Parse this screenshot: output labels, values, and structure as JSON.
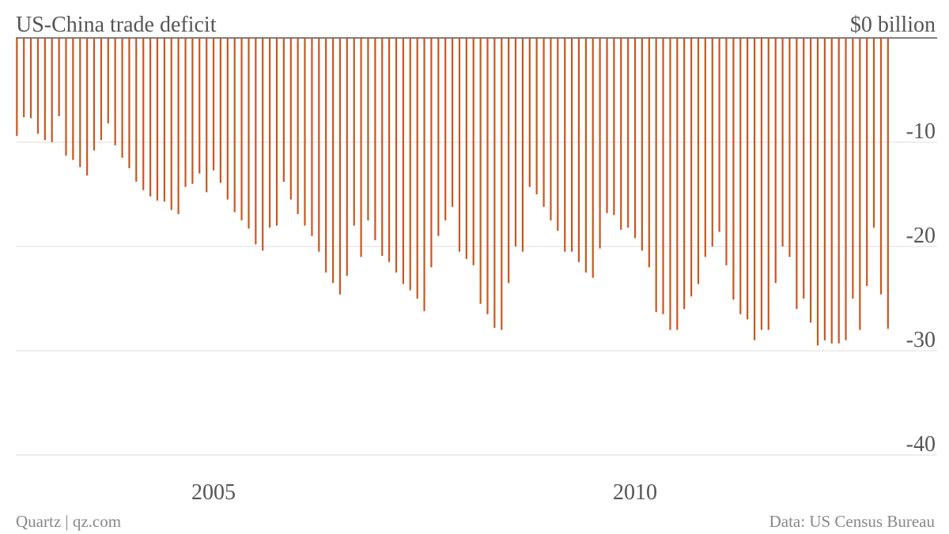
{
  "chart_data": {
    "type": "bar",
    "title": "US-China trade deficit",
    "source_left": "Quartz | qz.com",
    "source_right": "Data: US Census Bureau",
    "color": "#c9561f",
    "x": [
      2002.667,
      2002.75,
      2002.833,
      2002.917,
      2003,
      2003.083,
      2003.167,
      2003.25,
      2003.333,
      2003.417,
      2003.5,
      2003.583,
      2003.667,
      2003.75,
      2003.833,
      2003.917,
      2004,
      2004.083,
      2004.167,
      2004.25,
      2004.333,
      2004.417,
      2004.5,
      2004.583,
      2004.667,
      2004.75,
      2004.833,
      2004.917,
      2005,
      2005.083,
      2005.167,
      2005.25,
      2005.333,
      2005.417,
      2005.5,
      2005.583,
      2005.667,
      2005.75,
      2005.833,
      2005.917,
      2006,
      2006.083,
      2006.167,
      2006.25,
      2006.333,
      2006.417,
      2006.5,
      2006.583,
      2006.667,
      2006.75,
      2006.833,
      2006.917,
      2007,
      2007.083,
      2007.167,
      2007.25,
      2007.333,
      2007.417,
      2007.5,
      2007.583,
      2007.667,
      2007.75,
      2007.833,
      2007.917,
      2008,
      2008.083,
      2008.167,
      2008.25,
      2008.333,
      2008.417,
      2008.5,
      2008.583,
      2008.667,
      2008.75,
      2008.833,
      2008.917,
      2009,
      2009.083,
      2009.167,
      2009.25,
      2009.333,
      2009.417,
      2009.5,
      2009.583,
      2009.667,
      2009.75,
      2009.833,
      2009.917,
      2010,
      2010.083,
      2010.167,
      2010.25,
      2010.333,
      2010.417,
      2010.5,
      2010.583,
      2010.667,
      2010.75,
      2010.833,
      2010.917,
      2011,
      2011.083,
      2011.167,
      2011.25,
      2011.333,
      2011.417,
      2011.5,
      2011.583,
      2011.667,
      2011.75,
      2011.833,
      2011.917,
      2012,
      2012.083,
      2012.167,
      2012.25,
      2012.333,
      2012.417,
      2012.5,
      2012.583,
      2012.667,
      2012.75,
      2012.833,
      2012.917,
      2013
    ],
    "values": [
      -9.4,
      -7.6,
      -7.7,
      -9.2,
      -9.8,
      -10.0,
      -7.5,
      -11.3,
      -11.7,
      -12.4,
      -13.2,
      -10.8,
      -9.8,
      -8.2,
      -10.3,
      -11.5,
      -12.5,
      -13.8,
      -14.6,
      -15.2,
      -15.6,
      -15.7,
      -16.5,
      -16.9,
      -14.3,
      -14.0,
      -13.0,
      -14.8,
      -12.7,
      -13.9,
      -15.5,
      -16.7,
      -17.5,
      -18.3,
      -19.8,
      -20.4,
      -18.2,
      -18.0,
      -13.8,
      -15.5,
      -16.9,
      -18.0,
      -19.0,
      -20.5,
      -22.5,
      -23.5,
      -24.6,
      -22.8,
      -18.0,
      -21.0,
      -17.5,
      -19.4,
      -20.9,
      -21.5,
      -22.5,
      -23.6,
      -24.2,
      -25.0,
      -26.2,
      -22.0,
      -19.0,
      -17.5,
      -16.2,
      -20.5,
      -21.2,
      -21.8,
      -25.5,
      -26.5,
      -27.8,
      -28.0,
      -23.5,
      -20.0,
      -20.5,
      -14.3,
      -15.0,
      -16.2,
      -17.5,
      -18.5,
      -20.5,
      -20.5,
      -21.5,
      -22.5,
      -23.0,
      -20.2,
      -16.8,
      -17.0,
      -18.4,
      -18.2,
      -19.2,
      -20.4,
      -22.0,
      -26.3,
      -26.5,
      -28.0,
      -28.0,
      -26.0,
      -24.8,
      -23.6,
      -21.0,
      -20.0,
      -18.6,
      -21.8,
      -25.1,
      -26.5,
      -27.0,
      -29.0,
      -28.0,
      -28.0,
      -23.5,
      -20.0,
      -21.0,
      -26.0,
      -25.0,
      -27.3,
      -29.5,
      -29.0,
      -29.3,
      -29.3,
      -29.0,
      -25.0,
      -28.0,
      -23.8,
      -18.2,
      -24.6,
      -27.9
    ],
    "xlim": [
      2002.6,
      2013.1
    ],
    "xticks": [
      2005,
      2010
    ],
    "ylim": [
      -40.5,
      0
    ],
    "yticks": [
      {
        "value": 0,
        "label": "$0 billion"
      },
      -10,
      -20,
      -30,
      -40
    ],
    "grid": true
  }
}
